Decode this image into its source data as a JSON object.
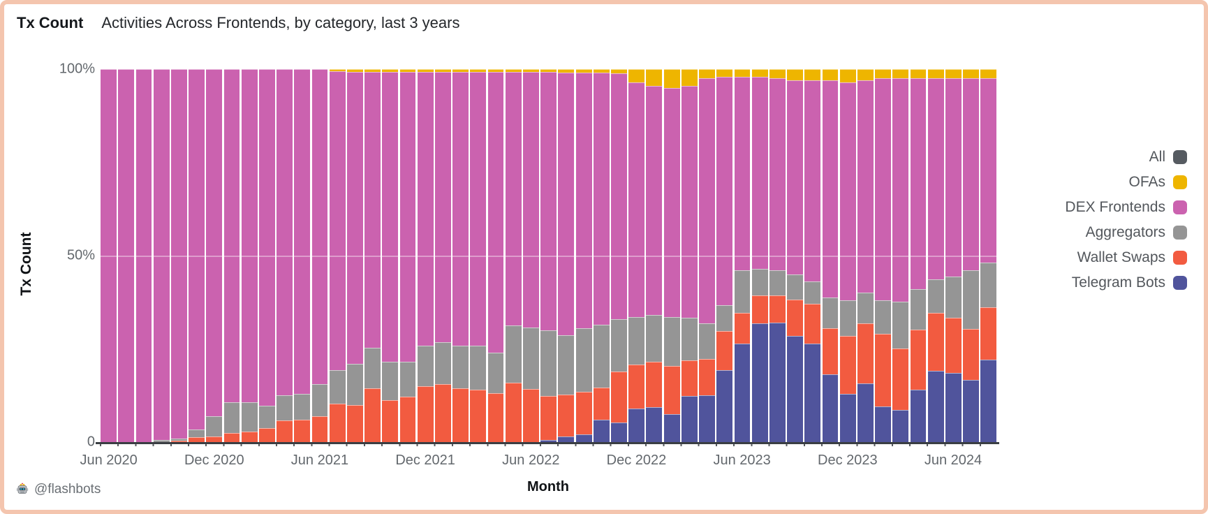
{
  "frame": {
    "border_color": "#f4c5ae",
    "background": "#ffffff"
  },
  "header": {
    "title": "Tx Count",
    "subtitle": "Activities Across Frontends, by category, last 3 years"
  },
  "footer": {
    "handle": "@flashbots",
    "icon": "robot-crown-icon"
  },
  "chart_data": {
    "type": "bar",
    "stacking": "percent",
    "title": "Tx Count — Activities Across Frontends, by category, last 3 years",
    "xlabel": "Month",
    "ylabel": "Tx Count",
    "ylim": [
      0,
      100
    ],
    "grid": "subtle horizontal line at 50%",
    "legend_position": "right",
    "y_ticks": [
      "100%",
      "50%",
      "0"
    ],
    "x_ticks": [
      "Jun 2020",
      "Dec 2020",
      "Jun 2021",
      "Dec 2021",
      "Jun 2022",
      "Dec 2022",
      "Jun 2023",
      "Dec 2023",
      "Jun 2024"
    ],
    "categories": [
      "Jun 2020",
      "Jul 2020",
      "Aug 2020",
      "Sep 2020",
      "Oct 2020",
      "Nov 2020",
      "Dec 2020",
      "Jan 2021",
      "Feb 2021",
      "Mar 2021",
      "Apr 2021",
      "May 2021",
      "Jun 2021",
      "Jul 2021",
      "Aug 2021",
      "Sep 2021",
      "Oct 2021",
      "Nov 2021",
      "Dec 2021",
      "Jan 2022",
      "Feb 2022",
      "Mar 2022",
      "Apr 2022",
      "May 2022",
      "Jun 2022",
      "Jul 2022",
      "Aug 2022",
      "Sep 2022",
      "Oct 2022",
      "Nov 2022",
      "Dec 2022",
      "Jan 2023",
      "Feb 2023",
      "Mar 2023",
      "Apr 2023",
      "May 2023",
      "Jun 2023",
      "Jul 2023",
      "Aug 2023",
      "Sep 2023",
      "Oct 2023",
      "Nov 2023",
      "Dec 2023",
      "Jan 2024",
      "Feb 2024",
      "Mar 2024",
      "Apr 2024",
      "May 2024",
      "Jun 2024",
      "Jul 2024",
      "Aug 2024"
    ],
    "series": [
      {
        "key": "telegram-bots",
        "name": "Telegram Bots",
        "color": "#50549c",
        "values": [
          0,
          0,
          0,
          0,
          0,
          0,
          0,
          0,
          0,
          0,
          0,
          0,
          0,
          0,
          0,
          0,
          0,
          0,
          0,
          0,
          0,
          0,
          0,
          0,
          0,
          0.5,
          1.5,
          2,
          6,
          5.2,
          9,
          9.3,
          7.5,
          12.4,
          12.5,
          19.3,
          26.5,
          31.9,
          32.1,
          28.4,
          26.5,
          18.1,
          13,
          15.7,
          9.6,
          8.7,
          14,
          19.1,
          18.5,
          16.7,
          22.1
        ]
      },
      {
        "key": "wallet-swaps",
        "name": "Wallet Swaps",
        "color": "#f25b40",
        "values": [
          0,
          0,
          0,
          0,
          0.3,
          1.3,
          1.5,
          2.4,
          2.9,
          3.7,
          5.9,
          6,
          6.9,
          10.3,
          9.9,
          14.5,
          11.2,
          12.2,
          15,
          15.5,
          14.5,
          14,
          13.2,
          15.9,
          14.3,
          11.9,
          11.2,
          11.4,
          8.6,
          13.8,
          11.8,
          12.2,
          13,
          9.6,
          9.8,
          10.5,
          8.1,
          7.5,
          7.2,
          9.8,
          10.6,
          12.5,
          15.5,
          16.2,
          19.5,
          16.4,
          16.1,
          15.6,
          14.8,
          13.6,
          14.1
        ]
      },
      {
        "key": "aggregators",
        "name": "Aggregators",
        "color": "#959595",
        "values": [
          0,
          0,
          0,
          0.5,
          0.7,
          2,
          5.5,
          8.3,
          7.8,
          6.1,
          6.6,
          6.9,
          8.6,
          9,
          11.1,
          10.7,
          10.4,
          9.4,
          10.8,
          11.3,
          11.3,
          11.8,
          10.7,
          15.4,
          16.4,
          17.6,
          16,
          17.1,
          16.9,
          14,
          12.7,
          12.5,
          13.1,
          11.3,
          9.6,
          7,
          11.4,
          7.1,
          6.7,
          6.8,
          5.9,
          8.1,
          9.5,
          8.1,
          9,
          12.6,
          11,
          9,
          11,
          15.7,
          12
        ]
      },
      {
        "key": "dex-frontends",
        "name": "DEX Frontends",
        "color": "#cb62af",
        "values": [
          100,
          100,
          100,
          99.5,
          99,
          96.7,
          93,
          89.3,
          89.3,
          90.2,
          87.5,
          87.1,
          84.5,
          80.2,
          78.3,
          74.1,
          77.7,
          77.7,
          73.5,
          72.5,
          73.5,
          73.5,
          75.4,
          68,
          68.5,
          69.2,
          70.4,
          68.5,
          67.5,
          65.8,
          63,
          61.5,
          61.4,
          62.2,
          65.6,
          61.2,
          52,
          51.5,
          51.5,
          52,
          54,
          58.3,
          58.5,
          57,
          59.4,
          59.8,
          56.4,
          53.8,
          53.2,
          51.5,
          49.3
        ]
      },
      {
        "key": "ofas",
        "name": "OFAs",
        "color": "#eeb500",
        "values": [
          0,
          0,
          0,
          0,
          0,
          0,
          0,
          0,
          0,
          0,
          0,
          0,
          0,
          0.5,
          0.7,
          0.7,
          0.7,
          0.7,
          0.7,
          0.7,
          0.7,
          0.7,
          0.7,
          0.7,
          0.8,
          0.8,
          0.9,
          1,
          1,
          1.2,
          3.5,
          4.5,
          5,
          4.5,
          2.5,
          2,
          2,
          2,
          2.5,
          3,
          3,
          3,
          3.5,
          3,
          2.5,
          2.5,
          2.5,
          2.5,
          2.5,
          2.5,
          2.5
        ]
      }
    ],
    "legend": [
      {
        "label": "All",
        "color": "#565b61"
      },
      {
        "label": "OFAs",
        "color": "#eeb500"
      },
      {
        "label": "DEX Frontends",
        "color": "#cb62af"
      },
      {
        "label": "Aggregators",
        "color": "#959595"
      },
      {
        "label": "Wallet Swaps",
        "color": "#f25b40"
      },
      {
        "label": "Telegram Bots",
        "color": "#50549c"
      }
    ]
  }
}
